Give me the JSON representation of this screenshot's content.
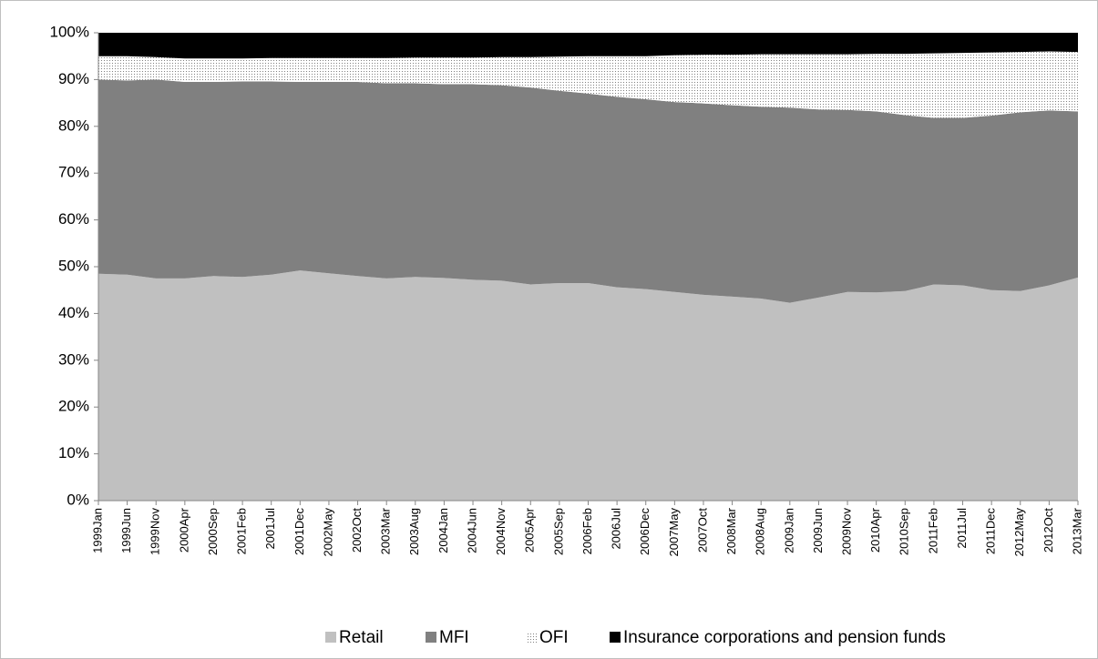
{
  "chart_data": {
    "type": "stacked_area",
    "categories": [
      "1999Jan",
      "1999Jun",
      "1999Nov",
      "2000Apr",
      "2000Sep",
      "2001Feb",
      "2001Jul",
      "2001Dec",
      "2002May",
      "2002Oct",
      "2003Mar",
      "2003Aug",
      "2004Jan",
      "2004Jun",
      "2004Nov",
      "2005Apr",
      "2005Sep",
      "2006Feb",
      "2006Jul",
      "2006Dec",
      "2007May",
      "2007Oct",
      "2008Mar",
      "2008Aug",
      "2009Jan",
      "2009Jun",
      "2009Nov",
      "2010Apr",
      "2010Sep",
      "2011Feb",
      "2011Jul",
      "2011Dec",
      "2012May",
      "2012Oct",
      "2013Mar"
    ],
    "series": [
      {
        "name": "Retail",
        "color": "#c0c0c0",
        "values": [
          48.5,
          48.3,
          47.5,
          47.5,
          48,
          47.8,
          48.3,
          49.2,
          48.6,
          48,
          47.5,
          47.8,
          47.6,
          47.2,
          47,
          46.2,
          46.5,
          46.5,
          45.6,
          45.2,
          44.6,
          44,
          43.6,
          43.2,
          42.3,
          43.4,
          44.6,
          44.5,
          44.8,
          46.2,
          46,
          45,
          44.8,
          46,
          47.7
        ]
      },
      {
        "name": "MFI",
        "color": "#808080",
        "values": [
          41.5,
          41.5,
          42.5,
          42,
          41.5,
          41.8,
          41.3,
          40.3,
          40.9,
          41.5,
          41.7,
          41.4,
          41.4,
          41.8,
          41.8,
          42.1,
          41.1,
          40.5,
          40.7,
          40.6,
          40.6,
          40.9,
          40.9,
          41,
          41.7,
          40.2,
          38.9,
          38.7,
          37.6,
          35.6,
          35.8,
          37.3,
          38.2,
          37.4,
          35.5
        ]
      },
      {
        "name": "OFI",
        "color": "#808080",
        "pattern": "dots",
        "values": [
          5,
          5.2,
          4.8,
          5,
          5,
          4.9,
          5,
          5.1,
          5.1,
          5.1,
          5.4,
          5.5,
          5.7,
          5.7,
          6,
          6.5,
          7.3,
          8,
          8.7,
          9.2,
          10,
          10.4,
          10.8,
          11.2,
          11.4,
          11.8,
          11.9,
          12.3,
          13.1,
          13.8,
          13.9,
          13.5,
          12.9,
          12.6,
          12.7
        ]
      },
      {
        "name": "Insurance corporations and pension funds",
        "color": "#000000",
        "values": [
          5,
          5,
          5.2,
          5.5,
          5.5,
          5.5,
          5.4,
          5.4,
          5.4,
          5.4,
          5.4,
          5.3,
          5.3,
          5.3,
          5.2,
          5.2,
          5.1,
          5,
          5,
          5,
          4.8,
          4.7,
          4.7,
          4.6,
          4.6,
          4.6,
          4.6,
          4.5,
          4.5,
          4.4,
          4.3,
          4.2,
          4.1,
          4,
          4.1
        ]
      }
    ],
    "ylim": [
      0,
      100
    ],
    "yticks": [
      {
        "value": 0,
        "label": "0%"
      },
      {
        "value": 10,
        "label": "10%"
      },
      {
        "value": 20,
        "label": "20%"
      },
      {
        "value": 30,
        "label": "30%"
      },
      {
        "value": 40,
        "label": "40%"
      },
      {
        "value": 50,
        "label": "50%"
      },
      {
        "value": 60,
        "label": "60%"
      },
      {
        "value": 70,
        "label": "70%"
      },
      {
        "value": 80,
        "label": "80%"
      },
      {
        "value": 90,
        "label": "90%"
      },
      {
        "value": 100,
        "label": "100%"
      }
    ],
    "grid": false,
    "legend": "bottom"
  }
}
